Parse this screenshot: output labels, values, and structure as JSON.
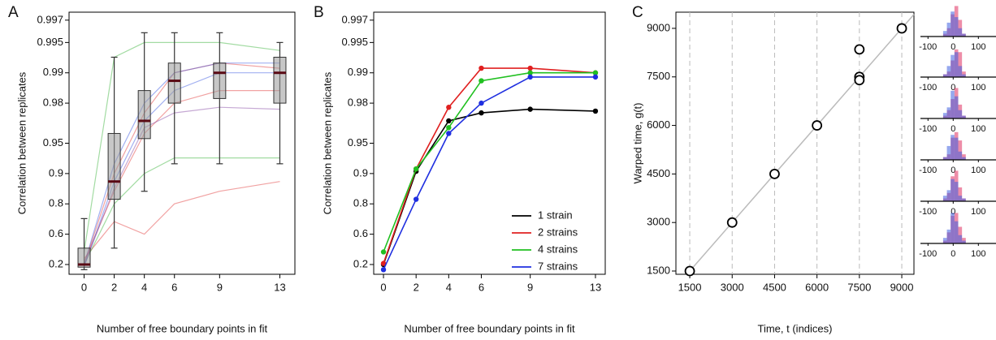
{
  "chart_data": [
    {
      "type": "box",
      "panel_label": "A",
      "ylabel": "Correlation between replicates",
      "xlabel": "Number of free boundary points in fit",
      "x": [
        0,
        2,
        4,
        6,
        9,
        13
      ],
      "xlim": [
        -1,
        14
      ],
      "xticks": [
        0,
        2,
        4,
        6,
        9,
        13
      ],
      "yscale": "log-complement",
      "ylim": [
        0,
        0.9975
      ],
      "yticks": [
        0.2,
        0.6,
        0.8,
        0.9,
        0.95,
        0.98,
        0.99,
        0.995,
        0.997
      ],
      "box_color": "#999999",
      "median_color": "#5a0a14",
      "boxes": {
        "whisker_low": [
          0.1,
          0.45,
          0.85,
          0.92,
          0.92,
          0.92
        ],
        "q1": [
          0.15,
          0.82,
          0.955,
          0.98,
          0.982,
          0.98
        ],
        "median": [
          0.2,
          0.88,
          0.97,
          0.988,
          0.99,
          0.99
        ],
        "q3": [
          0.45,
          0.96,
          0.985,
          0.992,
          0.992,
          0.993
        ],
        "whisker_high": [
          0.72,
          0.993,
          0.996,
          0.996,
          0.996,
          0.995
        ]
      },
      "series": [
        {
          "color": "#e03030",
          "values": [
            0.2,
            0.9,
            0.975,
            0.99,
            0.992,
            0.991
          ]
        },
        {
          "color": "#e03030",
          "values": [
            0.3,
            0.7,
            0.6,
            0.8,
            0.85,
            0.88
          ]
        },
        {
          "color": "#e03030",
          "values": [
            0.25,
            0.85,
            0.96,
            0.98,
            0.985,
            0.985
          ]
        },
        {
          "color": "#30b030",
          "values": [
            0.4,
            0.993,
            0.995,
            0.995,
            0.995,
            0.994
          ]
        },
        {
          "color": "#30b030",
          "values": [
            0.2,
            0.8,
            0.9,
            0.93,
            0.93,
            0.93
          ]
        },
        {
          "color": "#3050e0",
          "values": [
            0.15,
            0.88,
            0.97,
            0.985,
            0.99,
            0.99
          ]
        },
        {
          "color": "#3050e0",
          "values": [
            0.2,
            0.92,
            0.98,
            0.99,
            0.992,
            0.992
          ]
        },
        {
          "color": "#8040a0",
          "values": [
            0.18,
            0.86,
            0.965,
            0.975,
            0.978,
            0.977
          ]
        }
      ]
    },
    {
      "type": "line",
      "panel_label": "B",
      "ylabel": "Correlation between replicates",
      "xlabel": "Number of free boundary points in fit",
      "x": [
        0,
        2,
        4,
        6,
        9,
        13
      ],
      "xlim": [
        -0.6,
        13.6
      ],
      "xticks": [
        0,
        2,
        4,
        6,
        9,
        13
      ],
      "yscale": "log-complement",
      "ylim": [
        0,
        0.9975
      ],
      "yticks": [
        0.2,
        0.6,
        0.8,
        0.9,
        0.95,
        0.98,
        0.99,
        0.995,
        0.997
      ],
      "legend": "lower right",
      "series": [
        {
          "name": "1 strain",
          "color": "#000000",
          "values": [
            0.2,
            0.905,
            0.97,
            0.975,
            0.977,
            0.976
          ]
        },
        {
          "name": "2 strains",
          "color": "#e02020",
          "values": [
            0.22,
            0.91,
            0.978,
            0.991,
            0.991,
            0.99
          ]
        },
        {
          "name": "4 strains",
          "color": "#20c020",
          "values": [
            0.4,
            0.91,
            0.965,
            0.988,
            0.99,
            0.99
          ]
        },
        {
          "name": "7 strains",
          "color": "#1f2fe0",
          "values": [
            0.1,
            0.82,
            0.96,
            0.98,
            0.989,
            0.989
          ]
        }
      ]
    },
    {
      "type": "scatter",
      "panel_label": "C",
      "ylabel": "Warped time, g(t)",
      "xlabel": "Time, t (indices)",
      "x": [
        1500,
        3000,
        4500,
        6000,
        7500,
        7500,
        7500,
        9000
      ],
      "y": [
        1500,
        3000,
        4500,
        6000,
        7500,
        7400,
        8350,
        9000
      ],
      "xlim": [
        1010,
        9430
      ],
      "xticks": [
        1500,
        3000,
        4500,
        6000,
        7500,
        9000
      ],
      "ylim": [
        1400,
        9500
      ],
      "yticks": [
        1500,
        3000,
        4500,
        6000,
        7500,
        9000
      ],
      "diagonal": true,
      "vgrid": true,
      "color": "#000000"
    },
    {
      "type": "histogram",
      "bins": [
        -40,
        -25,
        -10,
        5,
        20,
        35,
        50
      ],
      "xlim": [
        -130,
        170
      ],
      "xticks": [
        -100,
        0,
        100
      ],
      "ylim": [
        0,
        12
      ],
      "series": [
        {
          "color": "#e03060",
          "values": [
            1,
            3,
            8,
            11,
            6,
            1
          ]
        },
        {
          "color": "#4060e0",
          "values": [
            2,
            5,
            9,
            7,
            3,
            1
          ]
        }
      ]
    },
    {
      "type": "histogram",
      "bins": [
        -40,
        -25,
        -10,
        5,
        20,
        35,
        50
      ],
      "xlim": [
        -130,
        170
      ],
      "xticks": [
        -100,
        0,
        100
      ],
      "ylim": [
        0,
        12
      ],
      "series": [
        {
          "color": "#e03060",
          "values": [
            1,
            2,
            6,
            10,
            9,
            2
          ]
        },
        {
          "color": "#4060e0",
          "values": [
            1,
            4,
            8,
            9,
            4,
            1
          ]
        }
      ]
    },
    {
      "type": "histogram",
      "bins": [
        -40,
        -25,
        -10,
        5,
        20,
        35,
        50
      ],
      "xlim": [
        -130,
        170
      ],
      "xticks": [
        -100,
        0,
        100
      ],
      "ylim": [
        0,
        12
      ],
      "series": [
        {
          "color": "#e03060",
          "values": [
            1,
            3,
            7,
            11,
            5,
            1
          ]
        },
        {
          "color": "#4060e0",
          "values": [
            2,
            4,
            10,
            8,
            3,
            1
          ]
        }
      ]
    },
    {
      "type": "histogram",
      "bins": [
        -40,
        -25,
        -10,
        5,
        20,
        35,
        50
      ],
      "xlim": [
        -130,
        170
      ],
      "xticks": [
        -100,
        0,
        100
      ],
      "ylim": [
        0,
        12
      ],
      "series": [
        {
          "color": "#e03060",
          "values": [
            1,
            2,
            8,
            10,
            7,
            2
          ]
        },
        {
          "color": "#4060e0",
          "values": [
            1,
            5,
            9,
            8,
            3,
            1
          ]
        }
      ]
    },
    {
      "type": "histogram",
      "bins": [
        -40,
        -25,
        -10,
        5,
        20,
        35,
        50
      ],
      "xlim": [
        -130,
        170
      ],
      "xticks": [
        -100,
        0,
        100
      ],
      "ylim": [
        0,
        12
      ],
      "series": [
        {
          "color": "#e03060",
          "values": [
            1,
            3,
            9,
            11,
            5,
            1
          ]
        },
        {
          "color": "#4060e0",
          "values": [
            2,
            4,
            8,
            7,
            2,
            1
          ]
        }
      ]
    },
    {
      "type": "histogram",
      "bins": [
        -40,
        -25,
        -10,
        5,
        20,
        35,
        50
      ],
      "xlim": [
        -130,
        170
      ],
      "xticks": [
        -100,
        0,
        100
      ],
      "ylim": [
        0,
        12
      ],
      "series": [
        {
          "color": "#e03060",
          "values": [
            1,
            4,
            10,
            11,
            6,
            2
          ]
        },
        {
          "color": "#4060e0",
          "values": [
            2,
            5,
            11,
            8,
            3,
            1
          ]
        }
      ]
    }
  ]
}
